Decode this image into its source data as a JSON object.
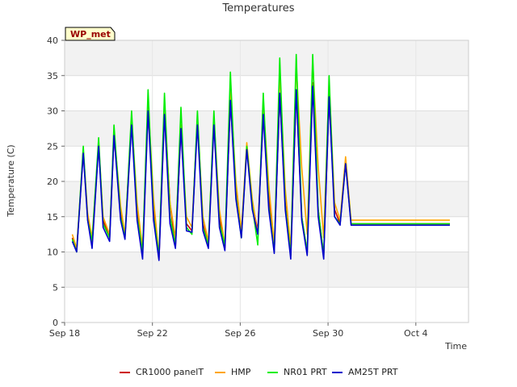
{
  "chart_data": {
    "type": "line",
    "title": "Temperatures",
    "xlabel": "Time",
    "ylabel": "Temperature (C)",
    "badge": "WP_met",
    "ylim": [
      0,
      40
    ],
    "yticks": [
      0,
      5,
      10,
      15,
      20,
      25,
      30,
      35,
      40
    ],
    "xlim_days": [
      0,
      18.4
    ],
    "xticks": [
      {
        "day": 0,
        "label": "Sep 18"
      },
      {
        "day": 4,
        "label": "Sep 22"
      },
      {
        "day": 8,
        "label": "Sep 26"
      },
      {
        "day": 12,
        "label": "Sep 30"
      },
      {
        "day": 16,
        "label": "Oct 4"
      }
    ],
    "grid": true,
    "legend_position": "bottom",
    "x_days": [
      0.35,
      0.55,
      0.85,
      1.05,
      1.25,
      1.55,
      1.75,
      2.05,
      2.25,
      2.55,
      2.75,
      3.05,
      3.3,
      3.55,
      3.8,
      4.05,
      4.3,
      4.55,
      4.8,
      5.05,
      5.3,
      5.55,
      5.8,
      6.05,
      6.3,
      6.55,
      6.8,
      7.05,
      7.3,
      7.55,
      7.8,
      8.05,
      8.3,
      8.55,
      8.8,
      9.05,
      9.3,
      9.55,
      9.8,
      10.05,
      10.3,
      10.55,
      10.8,
      11.05,
      11.3,
      11.55,
      11.8,
      12.05,
      12.3,
      12.55,
      12.8,
      13.05,
      13.3,
      13.55,
      13.8,
      14.05,
      14.3,
      14.55,
      14.8,
      15.05,
      15.3,
      15.55,
      15.8,
      16.05,
      16.3,
      16.55,
      16.8,
      17.05,
      17.3,
      17.55
    ],
    "series": [
      {
        "name": "CR1000 panelT",
        "color": "#cc0000",
        "values": [
          12.0,
          10.2,
          24.2,
          15.0,
          11.0,
          25.2,
          14.5,
          12.0,
          26.5,
          16.0,
          12.2,
          28.5,
          15.8,
          9.8,
          30.5,
          16.0,
          9.0,
          30.0,
          17.0,
          10.8,
          27.5,
          14.0,
          13.0,
          29.0,
          14.0,
          10.8,
          28.5,
          15.0,
          10.5,
          31.5,
          19.0,
          12.5,
          25.0,
          17.0,
          13.0,
          29.5,
          18.0,
          10.2,
          32.5,
          17.0,
          9.5,
          33.0,
          15.0,
          10.0,
          34.0,
          16.0,
          9.5,
          32.0,
          16.0,
          14.0,
          23.0,
          14.0,
          14.0,
          14.0,
          14.0,
          14.0,
          14.0,
          14.0,
          14.0,
          14.0,
          14.0,
          14.0,
          14.0,
          14.0,
          14.0,
          14.0,
          14.0,
          14.0,
          14.0,
          14.0
        ]
      },
      {
        "name": "HMP",
        "color": "#ffa500",
        "values": [
          12.5,
          10.5,
          24.5,
          15.5,
          12.0,
          25.5,
          15.0,
          12.5,
          27.0,
          16.5,
          12.5,
          29.0,
          17.0,
          10.5,
          31.5,
          17.5,
          9.5,
          31.0,
          17.0,
          12.0,
          28.0,
          15.0,
          13.5,
          29.0,
          15.0,
          11.5,
          29.0,
          16.0,
          11.0,
          33.0,
          20.0,
          13.0,
          25.5,
          17.5,
          12.5,
          31.0,
          19.5,
          11.0,
          35.5,
          19.0,
          10.5,
          36.5,
          22.0,
          12.5,
          37.0,
          22.0,
          12.0,
          34.0,
          17.0,
          14.5,
          23.5,
          14.5,
          14.5,
          14.5,
          14.5,
          14.5,
          14.5,
          14.5,
          14.5,
          14.5,
          14.5,
          14.5,
          14.5,
          14.5,
          14.5,
          14.5,
          14.5,
          14.5,
          14.5,
          14.5
        ]
      },
      {
        "name": "NR01 PRT",
        "color": "#00ee00",
        "values": [
          11.8,
          10.0,
          25.0,
          14.5,
          11.5,
          26.2,
          14.0,
          12.0,
          28.0,
          15.0,
          12.0,
          30.0,
          15.0,
          10.0,
          33.0,
          15.0,
          9.5,
          32.5,
          15.0,
          11.0,
          30.5,
          13.5,
          12.5,
          30.0,
          13.5,
          11.0,
          30.0,
          14.0,
          11.0,
          35.5,
          18.0,
          12.0,
          25.0,
          16.5,
          11.0,
          32.5,
          16.5,
          10.0,
          37.5,
          16.5,
          9.5,
          38.0,
          15.0,
          10.0,
          38.0,
          16.0,
          9.5,
          35.0,
          15.0,
          14.0,
          22.5,
          14.0,
          14.0,
          14.0,
          14.0,
          14.0,
          14.0,
          14.0,
          14.0,
          14.0,
          14.0,
          14.0,
          14.0,
          14.0,
          14.0,
          14.0,
          14.0,
          14.0,
          14.0,
          14.0
        ]
      },
      {
        "name": "AM25T PRT",
        "color": "#0000cc",
        "values": [
          11.5,
          10.0,
          24.0,
          14.5,
          10.5,
          25.0,
          13.5,
          11.5,
          26.5,
          14.5,
          11.8,
          28.0,
          14.5,
          9.0,
          30.0,
          14.5,
          8.8,
          29.5,
          14.0,
          10.5,
          27.5,
          13.0,
          12.8,
          28.0,
          13.0,
          10.5,
          28.0,
          13.5,
          10.2,
          31.5,
          17.5,
          12.0,
          24.5,
          16.0,
          12.5,
          29.5,
          16.0,
          9.8,
          32.5,
          16.0,
          9.0,
          33.0,
          14.5,
          9.5,
          33.5,
          15.0,
          9.0,
          32.0,
          15.0,
          13.8,
          22.5,
          13.8,
          13.8,
          13.8,
          13.8,
          13.8,
          13.8,
          13.8,
          13.8,
          13.8,
          13.8,
          13.8,
          13.8,
          13.8,
          13.8,
          13.8,
          13.8,
          13.8,
          13.8,
          13.8
        ]
      }
    ]
  }
}
